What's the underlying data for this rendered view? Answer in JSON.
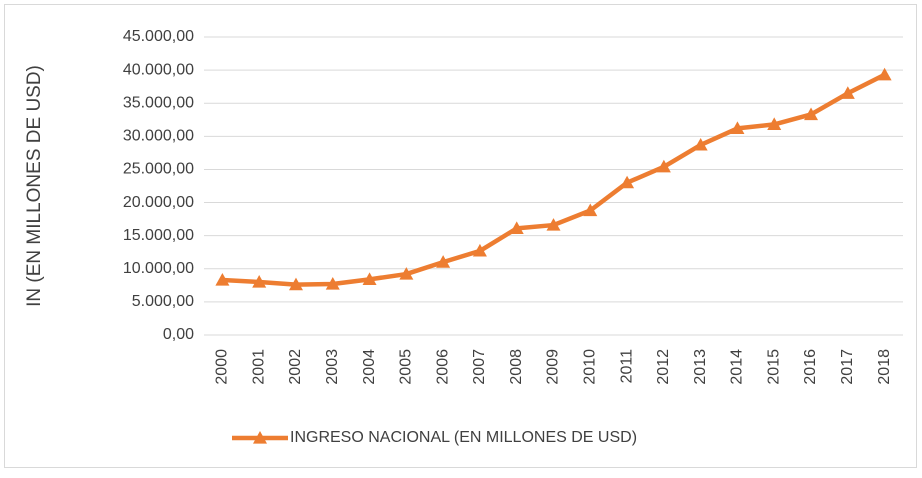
{
  "chart_data": {
    "type": "line",
    "y_label": "IN (EN MILLONES DE USD)",
    "categories": [
      "2000",
      "2001",
      "2002",
      "2003",
      "2004",
      "2005",
      "2006",
      "2007",
      "2008",
      "2009",
      "2010",
      "2011",
      "2012",
      "2013",
      "2014",
      "2015",
      "2016",
      "2017",
      "2018"
    ],
    "series": [
      {
        "name": "INGRESO NACIONAL (EN MILLONES DE USD)",
        "color": "#ed7d31",
        "values": [
          8300,
          8000,
          7600,
          7700,
          8400,
          9200,
          11000,
          12700,
          16100,
          16600,
          18800,
          23000,
          25400,
          28700,
          31200,
          31800,
          33300,
          36500,
          39300
        ]
      }
    ],
    "ylim": [
      0,
      45000
    ],
    "yticks": [
      {
        "value": 0,
        "label": "0,00"
      },
      {
        "value": 5000,
        "label": "5.000,00"
      },
      {
        "value": 10000,
        "label": "10.000,00"
      },
      {
        "value": 15000,
        "label": "15.000,00"
      },
      {
        "value": 20000,
        "label": "20.000,00"
      },
      {
        "value": 25000,
        "label": "25.000,00"
      },
      {
        "value": 30000,
        "label": "30.000,00"
      },
      {
        "value": 35000,
        "label": "35.000,00"
      },
      {
        "value": 40000,
        "label": "40.000,00"
      },
      {
        "value": 45000,
        "label": "45.000,00"
      }
    ],
    "grid": true,
    "legend": "bottom"
  }
}
